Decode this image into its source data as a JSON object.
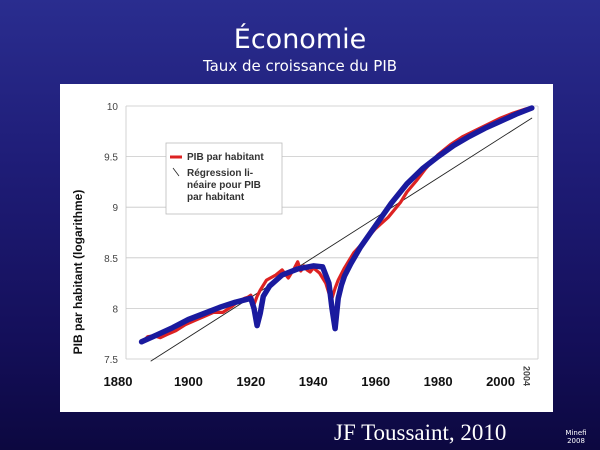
{
  "slide": {
    "title": "Économie",
    "subtitle": "Taux de croissance du PIB",
    "credit": "JF Toussaint, 2010",
    "stamp_line1": "Minefi",
    "stamp_line2": "2008"
  },
  "colors": {
    "background": "#1f1d78",
    "observed_series": "#dd2222",
    "fit_series": "#1a1a9e",
    "regression_line": "#222222"
  },
  "chart_data": {
    "type": "line",
    "title": "",
    "xlabel": "",
    "ylabel": "PIB par habitant (logarithme)",
    "xlim": [
      1880,
      2012
    ],
    "ylim": [
      7.5,
      10
    ],
    "yticks": [
      "7.5",
      "8",
      "8.5",
      "9",
      "9.5",
      "10"
    ],
    "xticks": [
      "1880",
      "1900",
      "1920",
      "1940",
      "1960",
      "1980",
      "2000"
    ],
    "xticks_rotated": [
      "2004"
    ],
    "grid": "horizontal",
    "legend_position": "top-left",
    "series": [
      {
        "name": "PIB par habitant",
        "style": "red-noisy",
        "x": [
          1885,
          1887,
          1889,
          1891,
          1893,
          1896,
          1899,
          1902,
          1905,
          1908,
          1911,
          1914,
          1916,
          1918,
          1919,
          1920,
          1921,
          1922,
          1923,
          1925,
          1928,
          1930,
          1932,
          1934,
          1935,
          1936,
          1937,
          1938,
          1939,
          1940,
          1942,
          1944,
          1945,
          1946,
          1947,
          1948,
          1950,
          1953,
          1956,
          1960,
          1964,
          1968,
          1970,
          1973,
          1976,
          1980,
          1984,
          1988,
          1992,
          1996,
          2000,
          2004,
          2008,
          2010
        ],
        "y": [
          7.66,
          7.72,
          7.73,
          7.71,
          7.74,
          7.78,
          7.84,
          7.88,
          7.92,
          7.96,
          7.96,
          8.02,
          8.07,
          8.1,
          8.11,
          8.13,
          8.04,
          8.12,
          8.18,
          8.28,
          8.33,
          8.38,
          8.3,
          8.4,
          8.46,
          8.37,
          8.42,
          8.38,
          8.36,
          8.4,
          8.35,
          8.25,
          8.15,
          8.1,
          8.2,
          8.28,
          8.4,
          8.55,
          8.65,
          8.79,
          8.9,
          9.05,
          9.15,
          9.26,
          9.38,
          9.52,
          9.62,
          9.7,
          9.76,
          9.82,
          9.88,
          9.93,
          9.97,
          9.98
        ]
      },
      {
        "name": "",
        "style": "blue-thick",
        "x": [
          1885,
          1890,
          1895,
          1900,
          1905,
          1910,
          1915,
          1920,
          1921,
          1922,
          1923,
          1924,
          1926,
          1930,
          1935,
          1940,
          1943,
          1945,
          1946,
          1947,
          1948,
          1949,
          1950,
          1952,
          1955,
          1960,
          1965,
          1970,
          1975,
          1980,
          1985,
          1990,
          1995,
          2000,
          2005,
          2010
        ],
        "y": [
          7.67,
          7.74,
          7.81,
          7.89,
          7.95,
          8.01,
          8.06,
          8.1,
          8.0,
          7.83,
          7.95,
          8.12,
          8.22,
          8.33,
          8.39,
          8.42,
          8.41,
          8.25,
          8.0,
          7.8,
          8.1,
          8.23,
          8.32,
          8.44,
          8.6,
          8.82,
          9.04,
          9.23,
          9.38,
          9.5,
          9.61,
          9.7,
          9.78,
          9.85,
          9.92,
          9.98
        ]
      },
      {
        "name": "Régression li-néaire pour PIB par habitant",
        "legend_lines": [
          "Régression li-",
          "néaire pour PIB",
          "par habitant"
        ],
        "style": "thin-black",
        "x": [
          1888,
          2010
        ],
        "y": [
          7.48,
          9.88
        ]
      }
    ]
  }
}
